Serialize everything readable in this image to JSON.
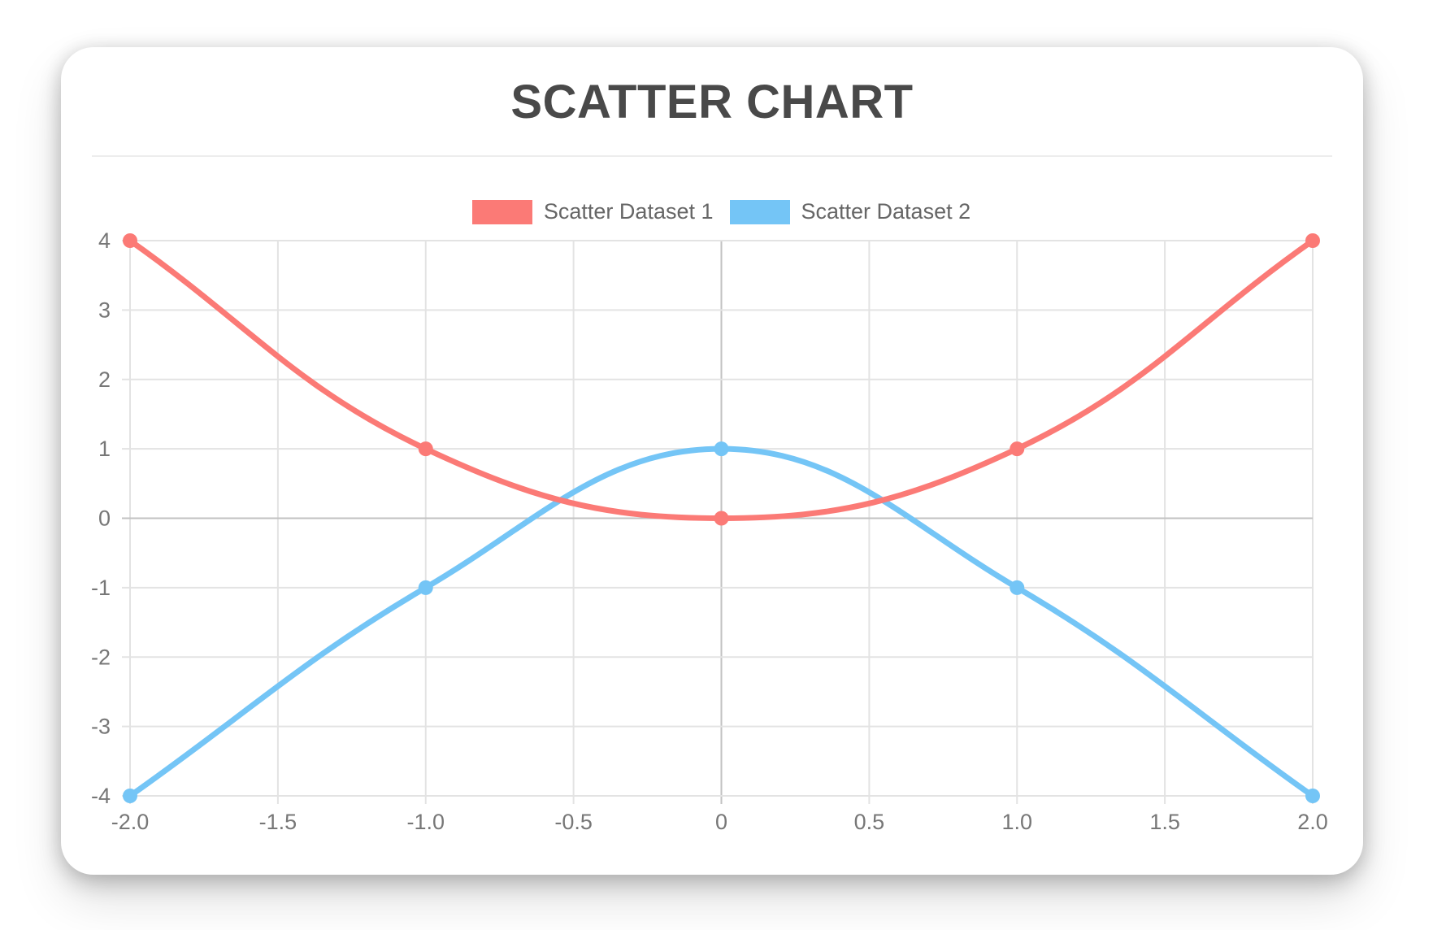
{
  "card": {
    "background": "#ffffff"
  },
  "chart_data": {
    "type": "scatter",
    "title": "SCATTER CHART",
    "xlabel": "",
    "ylabel": "",
    "xlim": [
      -2,
      2
    ],
    "ylim": [
      -4,
      4
    ],
    "grid": true,
    "legend_position": "top",
    "x_ticks": [
      {
        "value": -2,
        "label": "-2.0"
      },
      {
        "value": -1.5,
        "label": "-1.5"
      },
      {
        "value": -1,
        "label": "-1.0"
      },
      {
        "value": -0.5,
        "label": "-0.5"
      },
      {
        "value": 0,
        "label": "0"
      },
      {
        "value": 0.5,
        "label": "0.5"
      },
      {
        "value": 1,
        "label": "1.0"
      },
      {
        "value": 1.5,
        "label": "1.5"
      },
      {
        "value": 2,
        "label": "2.0"
      }
    ],
    "y_ticks": [
      {
        "value": 4,
        "label": "4"
      },
      {
        "value": 3,
        "label": "3"
      },
      {
        "value": 2,
        "label": "2"
      },
      {
        "value": 1,
        "label": "1"
      },
      {
        "value": 0,
        "label": "0"
      },
      {
        "value": -1,
        "label": "-1"
      },
      {
        "value": -2,
        "label": "-2"
      },
      {
        "value": -3,
        "label": "-3"
      },
      {
        "value": -4,
        "label": "-4"
      }
    ],
    "series": [
      {
        "name": "Scatter Dataset 1",
        "color": "#fb7a76",
        "points": [
          [
            -2,
            4
          ],
          [
            -1,
            1
          ],
          [
            0,
            0
          ],
          [
            1,
            1
          ],
          [
            2,
            4
          ]
        ]
      },
      {
        "name": "Scatter Dataset 2",
        "color": "#74c5f6",
        "points": [
          [
            -2,
            -4
          ],
          [
            -1,
            -1
          ],
          [
            0,
            1
          ],
          [
            1,
            -1
          ],
          [
            2,
            -4
          ]
        ]
      }
    ],
    "curve_tension": 0.4,
    "line_width": 7,
    "point_radius": 9
  },
  "style_colors": {
    "grid_line": "#e3e3e3",
    "zero_line": "#c2c2c2",
    "tick_text": "#777777",
    "legend_text": "#666666",
    "title_text": "#494949"
  }
}
